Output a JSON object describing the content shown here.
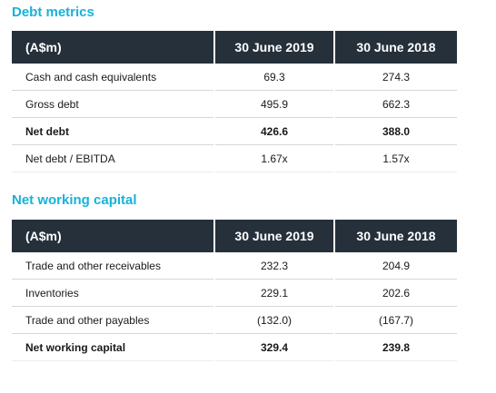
{
  "debt": {
    "title": "Debt metrics",
    "headers": [
      "(A$m)",
      "30 June 2019",
      "30 June 2018"
    ],
    "rows": [
      {
        "label": "Cash and cash equivalents",
        "y2019": "69.3",
        "y2018": "274.3"
      },
      {
        "label": "Gross debt",
        "y2019": "495.9",
        "y2018": "662.3"
      },
      {
        "label": "Net debt",
        "y2019": "426.6",
        "y2018": "388.0"
      },
      {
        "label": "Net debt / EBITDA",
        "y2019": "1.67x",
        "y2018": "1.57x"
      }
    ]
  },
  "nwc": {
    "title": "Net working capital",
    "headers": [
      "(A$m)",
      "30 June 2019",
      "30 June 2018"
    ],
    "rows": [
      {
        "label": "Trade and other receivables",
        "y2019": "232.3",
        "y2018": "204.9"
      },
      {
        "label": "Inventories",
        "y2019": "229.1",
        "y2018": "202.6"
      },
      {
        "label": "Trade and other payables",
        "y2019": "(132.0)",
        "y2018": "(167.7)"
      },
      {
        "label": "Net working capital",
        "y2019": "329.4",
        "y2018": "239.8"
      }
    ]
  },
  "colors": {
    "title_accent": "#17b2d8",
    "header_background": "#25303b",
    "row_divider": "#d7d7d7"
  }
}
